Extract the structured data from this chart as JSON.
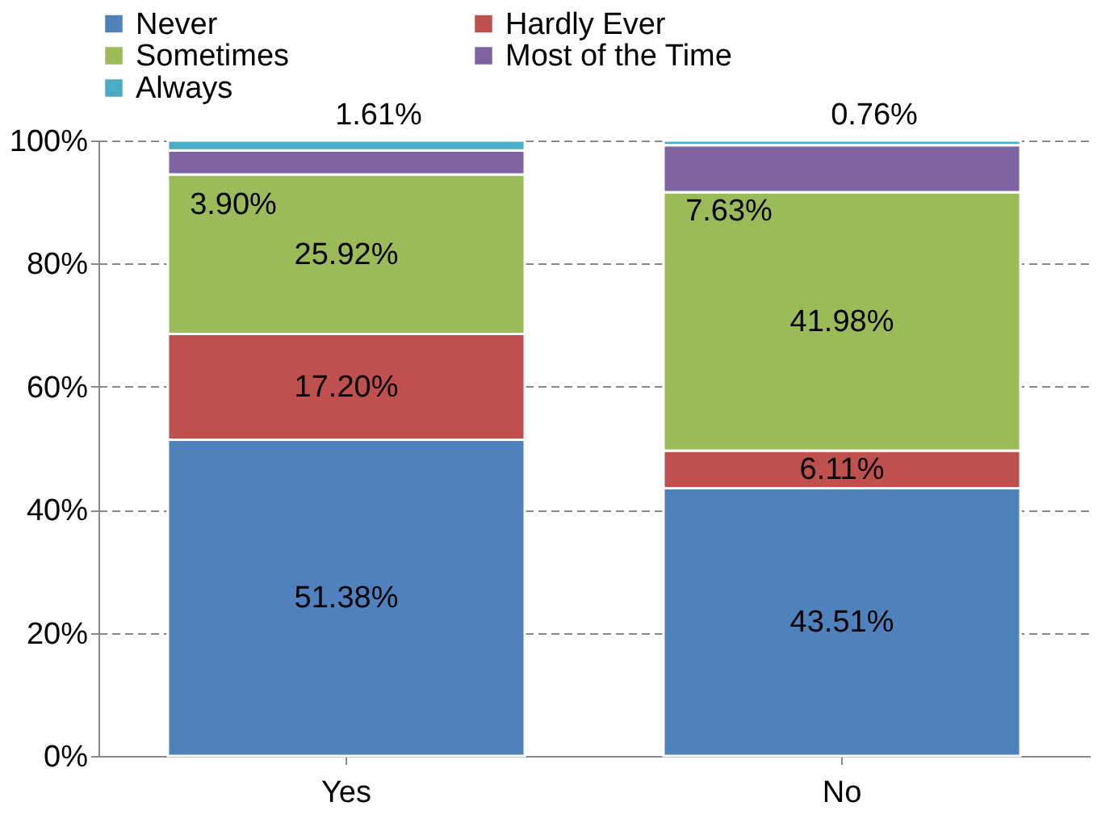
{
  "chart_data": {
    "type": "bar",
    "stacked": true,
    "categories": [
      "Yes",
      "No"
    ],
    "series": [
      {
        "name": "Never",
        "color": "#4f81bd",
        "values": [
          51.38,
          43.51
        ],
        "value_labels": [
          "51.38%",
          "43.51%"
        ]
      },
      {
        "name": "Hardly Ever",
        "color": "#c0504d",
        "values": [
          17.2,
          6.11
        ],
        "value_labels": [
          "17.20%",
          "6.11%"
        ]
      },
      {
        "name": "Sometimes",
        "color": "#9bbb59",
        "values": [
          25.92,
          41.98
        ],
        "value_labels": [
          "25.92%",
          "41.98%"
        ]
      },
      {
        "name": "Most of the Time",
        "color": "#8064a2",
        "values": [
          3.9,
          7.63
        ],
        "value_labels": [
          "3.90%",
          "7.63%"
        ]
      },
      {
        "name": "Always",
        "color": "#4bacc6",
        "values": [
          1.61,
          0.76
        ],
        "value_labels": [
          "1.61%",
          "0.76%"
        ]
      }
    ],
    "ylim": [
      0,
      100
    ],
    "yticks": [
      {
        "value": 0,
        "label": "0%"
      },
      {
        "value": 20,
        "label": "20%"
      },
      {
        "value": 40,
        "label": "40%"
      },
      {
        "value": 60,
        "label": "60%"
      },
      {
        "value": 80,
        "label": "80%"
      },
      {
        "value": 100,
        "label": "100%"
      }
    ],
    "grid": "y",
    "legend": "top"
  }
}
